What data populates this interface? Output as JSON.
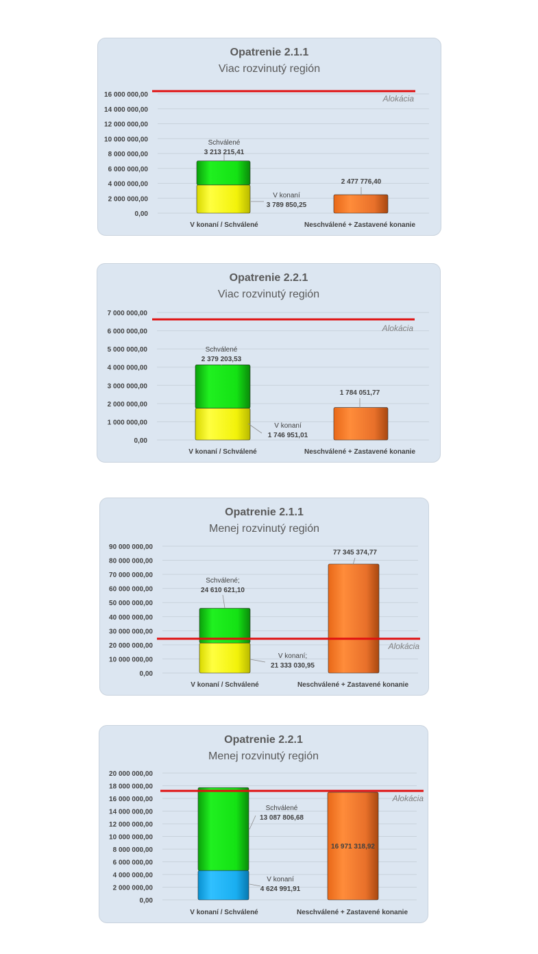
{
  "chart_data": [
    {
      "type": "bar",
      "title": "Opatrenie 2.1.1",
      "subtitle": "Viac rozvinutý región",
      "categories": [
        "V konaní / Schválené",
        "Neschválené + Zastavené konanie"
      ],
      "series": [
        {
          "name": "V konaní",
          "color": "#f5f50a",
          "values": [
            3789850.25,
            null
          ]
        },
        {
          "name": "Schválené",
          "color": "#14e614",
          "values": [
            3213215.41,
            null
          ]
        },
        {
          "name": "",
          "color": "#f0782a",
          "values": [
            null,
            2477776.4
          ]
        }
      ],
      "data_labels": [
        {
          "name": "Schválené",
          "value": "3 213 215,41"
        },
        {
          "name": "V konaní",
          "value": "3 789 850,25"
        },
        {
          "name": "",
          "value": "2 477 776,40"
        }
      ],
      "allocation": {
        "label": "Alokácia",
        "value": 16200000
      },
      "ylim": [
        0,
        16000000
      ],
      "yticks": [
        "0,00",
        "2 000 000,00",
        "4 000 000,00",
        "6 000 000,00",
        "8 000 000,00",
        "10 000 000,00",
        "12 000 000,00",
        "14 000 000,00",
        "16 000 000,00"
      ],
      "grid": true
    },
    {
      "type": "bar",
      "title": "Opatrenie 2.2.1",
      "subtitle": "Viac rozvinutý región",
      "categories": [
        "V konaní / Schválené",
        "Neschválené + Zastavené konanie"
      ],
      "series": [
        {
          "name": "V konaní",
          "color": "#f5f50a",
          "values": [
            1746951.01,
            null
          ]
        },
        {
          "name": "Schválené",
          "color": "#14e614",
          "values": [
            2379203.53,
            null
          ]
        },
        {
          "name": "",
          "color": "#f0782a",
          "values": [
            null,
            1784051.77
          ]
        }
      ],
      "data_labels": [
        {
          "name": "Schválené",
          "value": "2 379 203,53"
        },
        {
          "name": "V konaní",
          "value": "1 746 951,01"
        },
        {
          "name": "",
          "value": "1 784 051,77"
        }
      ],
      "allocation": {
        "label": "Alokácia",
        "value": 6600000
      },
      "ylim": [
        0,
        7000000
      ],
      "yticks": [
        "0,00",
        "1 000 000,00",
        "2 000 000,00",
        "3 000 000,00",
        "4 000 000,00",
        "5 000 000,00",
        "6 000 000,00",
        "7 000 000,00"
      ],
      "grid": true
    },
    {
      "type": "bar",
      "title": "Opatrenie 2.1.1",
      "subtitle": "Menej rozvinutý región",
      "categories": [
        "V konaní / Schválené",
        "Neschválené + Zastavené konanie"
      ],
      "series": [
        {
          "name": "V konaní",
          "color": "#f5f50a",
          "values": [
            21333030.95,
            null
          ]
        },
        {
          "name": "Schválené",
          "color": "#14e614",
          "values": [
            24610621.1,
            null
          ]
        },
        {
          "name": "",
          "color": "#f0782a",
          "values": [
            null,
            77345374.77
          ]
        }
      ],
      "data_labels": [
        {
          "name": "Schválené;",
          "value": "24 610 621,10"
        },
        {
          "name": "V konaní;",
          "value": "21 333 030,95"
        },
        {
          "name": "",
          "value": "77 345 374,77"
        }
      ],
      "allocation": {
        "label": "Alokácia",
        "value": 25000000
      },
      "ylim": [
        0,
        90000000
      ],
      "yticks": [
        "0,00",
        "10 000 000,00",
        "20 000 000,00",
        "30 000 000,00",
        "40 000 000,00",
        "50 000 000,00",
        "60 000 000,00",
        "70 000 000,00",
        "80 000 000,00",
        "90 000 000,00"
      ],
      "grid": true
    },
    {
      "type": "bar",
      "title": "Opatrenie 2.2.1",
      "subtitle": "Menej rozvinutý región",
      "categories": [
        "V konaní / Schválené",
        "Neschválené + Zastavené konanie"
      ],
      "series": [
        {
          "name": "V konaní",
          "color": "#1aaef0",
          "values": [
            4624991.91,
            null
          ]
        },
        {
          "name": "Schválené",
          "color": "#14e614",
          "values": [
            13087806.68,
            null
          ]
        },
        {
          "name": "",
          "color": "#f0782a",
          "values": [
            null,
            16971318.92
          ]
        }
      ],
      "data_labels": [
        {
          "name": "Schválené",
          "value": "13 087 806,68"
        },
        {
          "name": "V konaní",
          "value": "4 624 991,91"
        },
        {
          "name": "",
          "value": "16 971 318,92"
        }
      ],
      "allocation": {
        "label": "Alokácia",
        "value": 17500000
      },
      "ylim": [
        0,
        20000000
      ],
      "yticks": [
        "0,00",
        "2 000 000,00",
        "4 000 000,00",
        "6 000 000,00",
        "8 000 000,00",
        "10 000 000,00",
        "12 000 000,00",
        "14 000 000,00",
        "16 000 000,00",
        "18 000 000,00",
        "20 000 000,00"
      ],
      "grid": true
    }
  ]
}
